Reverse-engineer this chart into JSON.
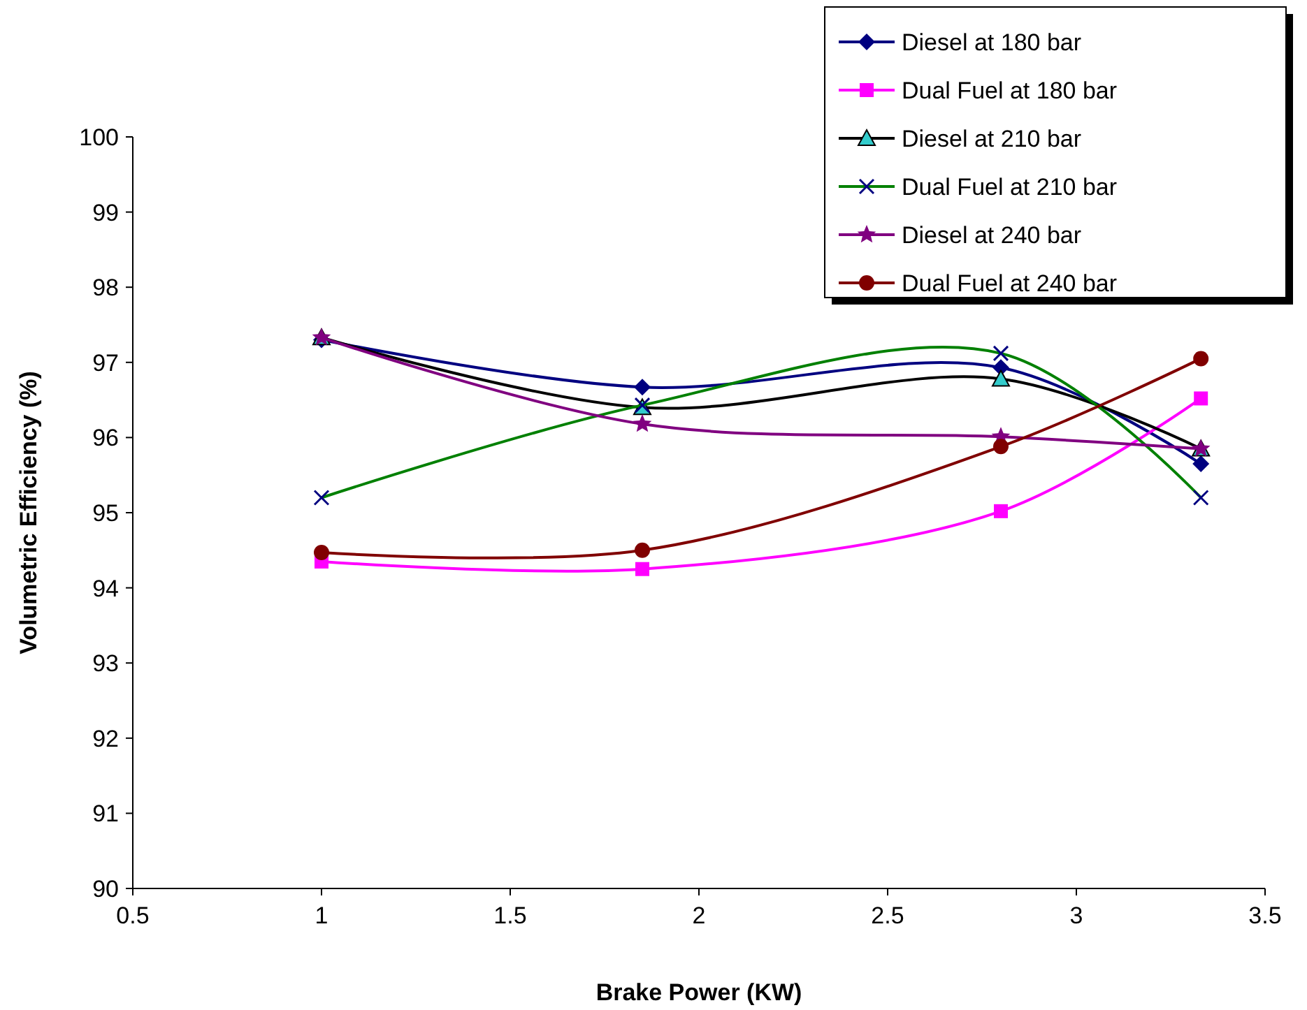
{
  "chart_data": {
    "type": "line",
    "xlabel": "Brake Power (KW)",
    "ylabel": "Volumetric Efficiency (%)",
    "x": [
      1,
      1.85,
      2.8,
      3.33
    ],
    "xlim": [
      0.5,
      3.5
    ],
    "xticks": [
      0.5,
      1,
      1.5,
      2,
      2.5,
      3,
      3.5
    ],
    "ylim": [
      90,
      100
    ],
    "yticks": [
      90,
      91,
      92,
      93,
      94,
      95,
      96,
      97,
      98,
      99,
      100
    ],
    "grid": false,
    "legend": "top right",
    "series": [
      {
        "name": "Diesel at 180 bar",
        "color": "#000080",
        "marker": "diamond",
        "values": [
          97.3,
          96.67,
          96.93,
          95.65
        ]
      },
      {
        "name": "Dual Fuel at 180 bar",
        "color": "#ff00ff",
        "marker": "square",
        "values": [
          94.35,
          94.25,
          95.02,
          96.52
        ]
      },
      {
        "name": "Diesel at 210 bar",
        "color": "#000000",
        "marker": "triangle",
        "values": [
          97.33,
          96.4,
          96.78,
          95.85
        ]
      },
      {
        "name": "Dual Fuel at 210 bar",
        "color": "#008000",
        "marker": "cross",
        "values": [
          95.2,
          96.43,
          97.12,
          95.2
        ]
      },
      {
        "name": "Diesel at 240 bar",
        "color": "#800080",
        "marker": "star",
        "values": [
          97.33,
          96.18,
          96.01,
          95.85
        ]
      },
      {
        "name": "Dual Fuel at 240 bar",
        "color": "#800000",
        "marker": "circle",
        "values": [
          94.47,
          94.5,
          95.88,
          97.05
        ]
      }
    ]
  }
}
